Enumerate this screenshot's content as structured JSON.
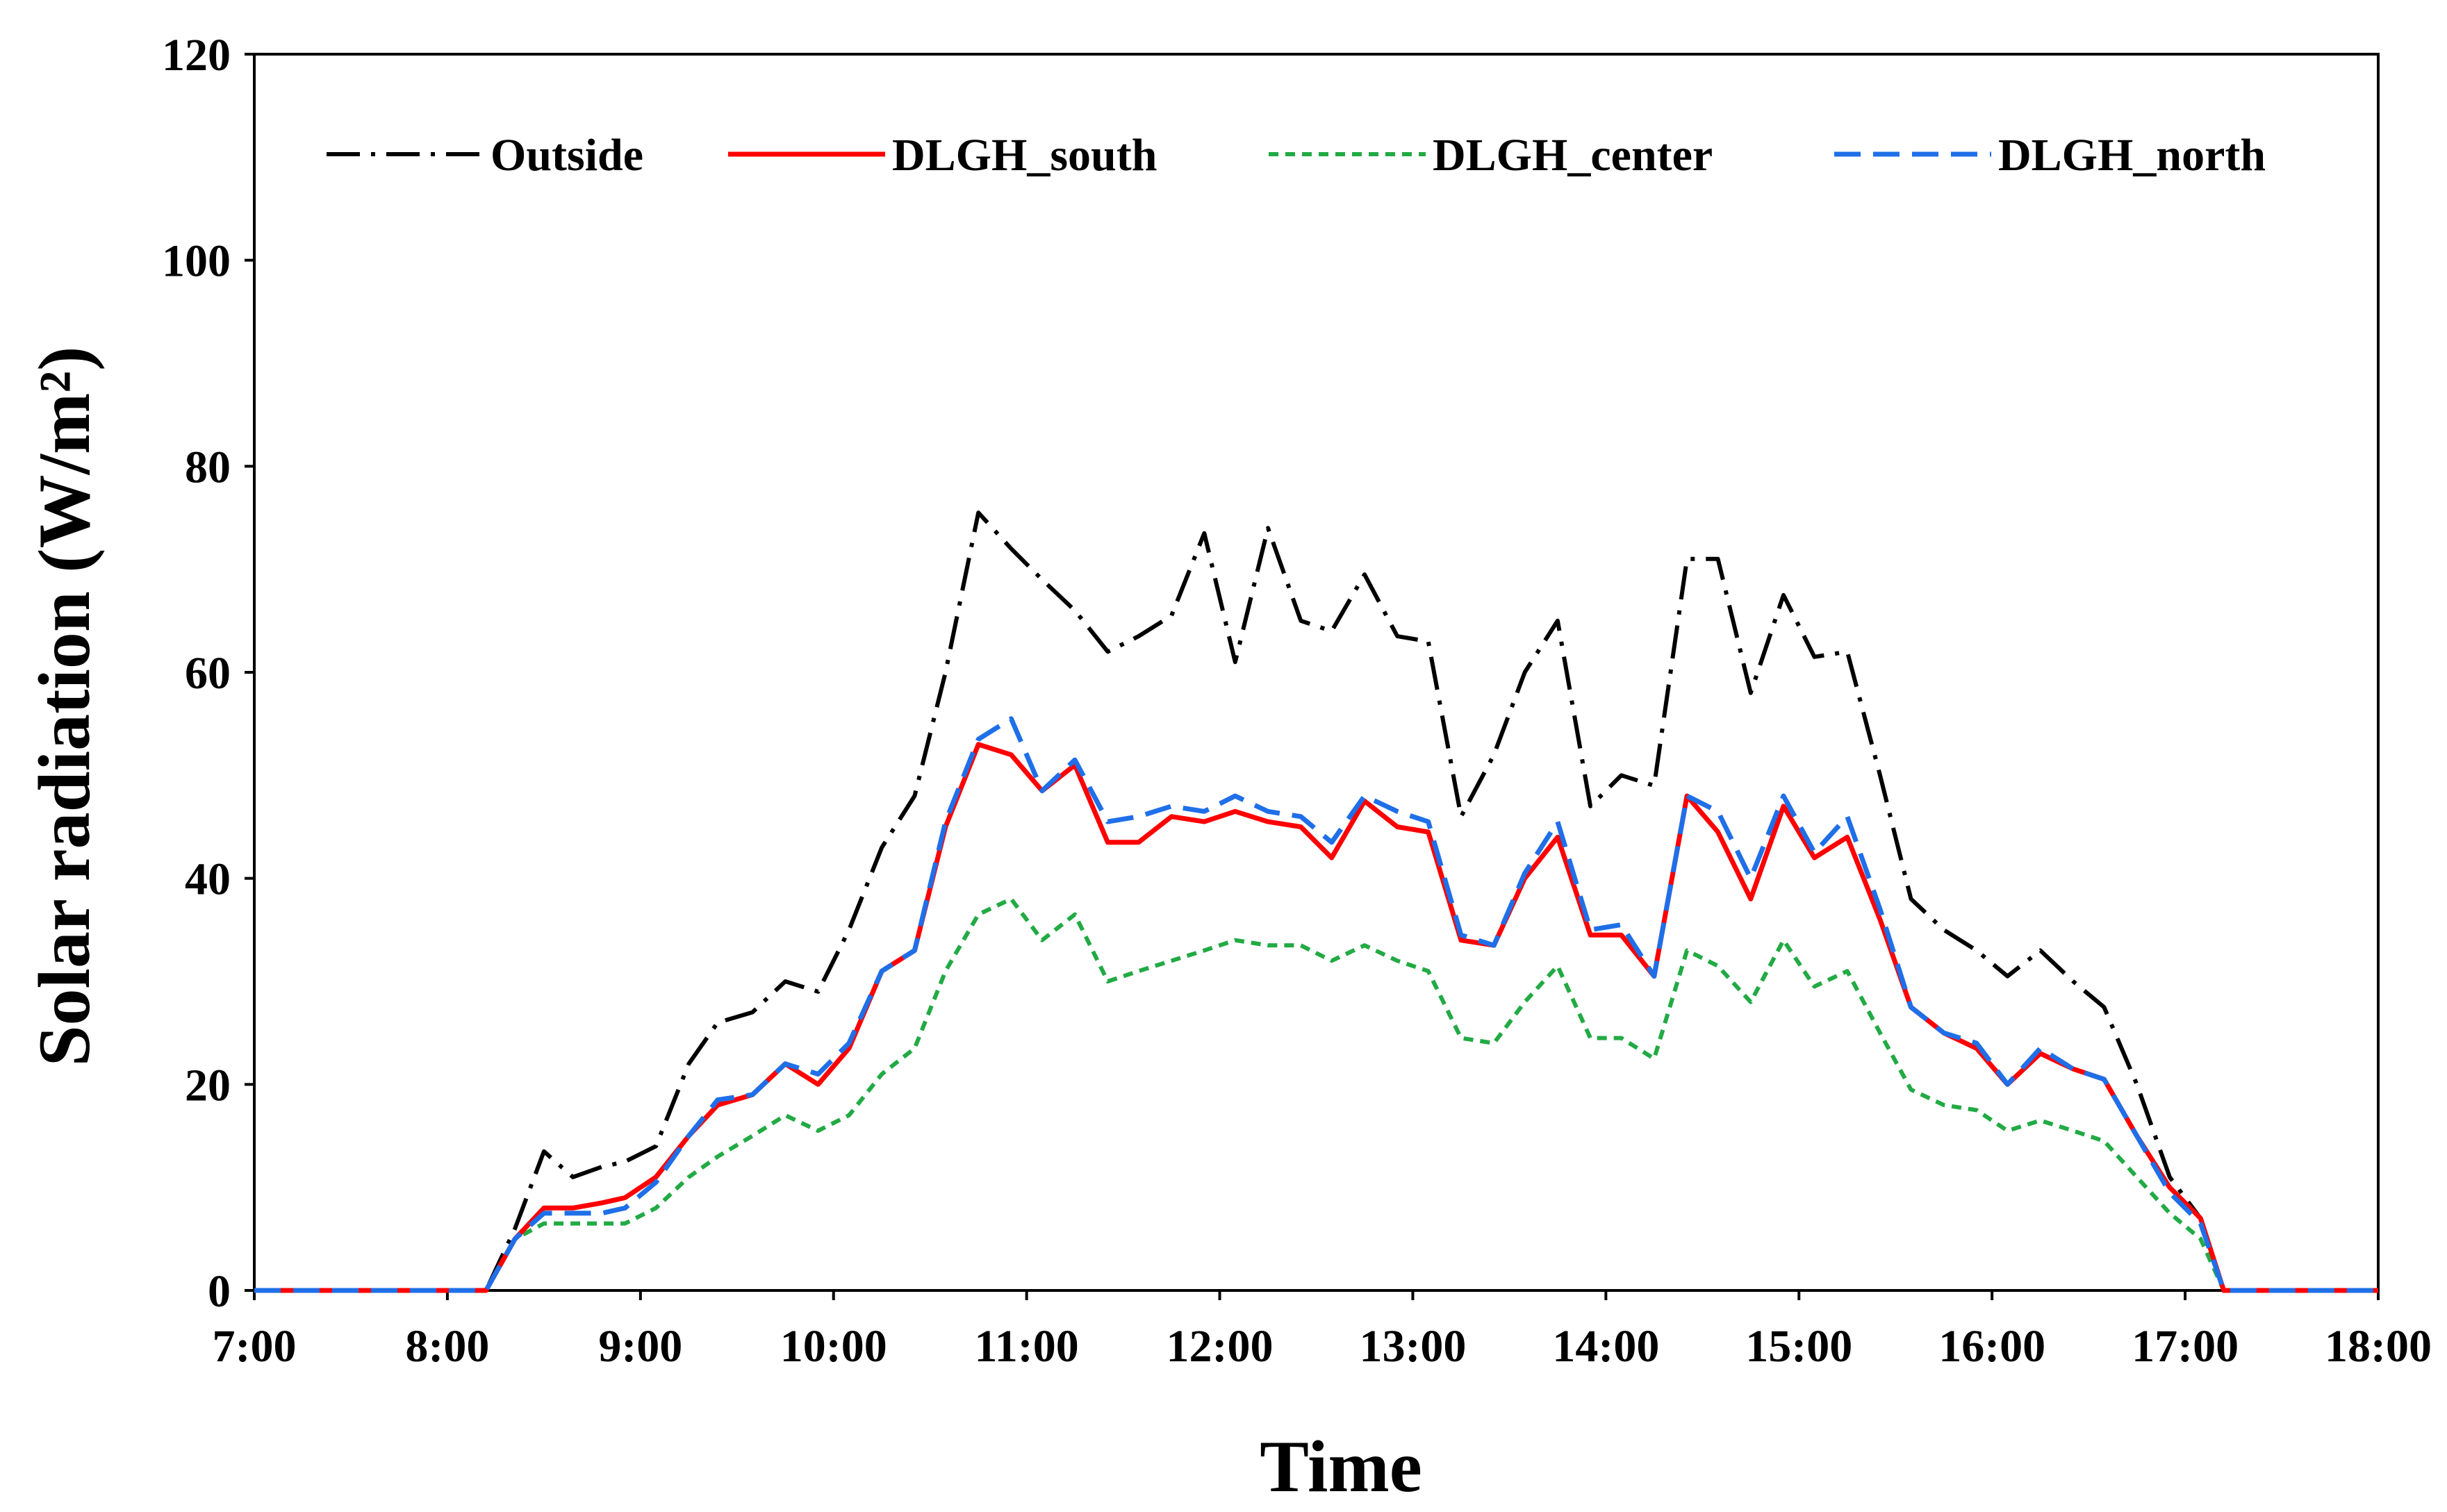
{
  "chart_data": {
    "type": "line",
    "title": "",
    "xlabel": "Time",
    "ylabel": "Solar radiation (W/m²)",
    "xlim": [
      7,
      18
    ],
    "ylim": [
      0,
      120
    ],
    "x_ticks": [
      {
        "value": 7,
        "label": "7:00"
      },
      {
        "value": 8,
        "label": "8:00"
      },
      {
        "value": 9,
        "label": "9:00"
      },
      {
        "value": 10,
        "label": "10:00"
      },
      {
        "value": 11,
        "label": "11:00"
      },
      {
        "value": 12,
        "label": "12:00"
      },
      {
        "value": 13,
        "label": "13:00"
      },
      {
        "value": 14,
        "label": "14:00"
      },
      {
        "value": 15,
        "label": "15:00"
      },
      {
        "value": 16,
        "label": "16:00"
      },
      {
        "value": 17,
        "label": "17:00"
      },
      {
        "value": 18,
        "label": "18:00"
      }
    ],
    "y_ticks": [
      {
        "value": 0,
        "label": "0"
      },
      {
        "value": 20,
        "label": "20"
      },
      {
        "value": 40,
        "label": "40"
      },
      {
        "value": 60,
        "label": "60"
      },
      {
        "value": 80,
        "label": "80"
      },
      {
        "value": 100,
        "label": "100"
      },
      {
        "value": 120,
        "label": "120"
      }
    ],
    "grid": false,
    "legend_position": "top",
    "x": [
      7.0,
      8.0,
      8.2,
      8.35,
      8.5,
      8.65,
      8.8,
      8.92,
      9.08,
      9.25,
      9.4,
      9.58,
      9.75,
      9.92,
      10.08,
      10.25,
      10.42,
      10.58,
      10.75,
      10.92,
      11.08,
      11.25,
      11.42,
      11.58,
      11.75,
      11.92,
      12.08,
      12.25,
      12.42,
      12.58,
      12.75,
      12.92,
      13.08,
      13.25,
      13.42,
      13.58,
      13.75,
      13.92,
      14.08,
      14.25,
      14.42,
      14.58,
      14.75,
      14.92,
      15.08,
      15.25,
      15.42,
      15.58,
      15.75,
      15.92,
      16.08,
      16.25,
      16.42,
      16.58,
      16.75,
      16.92,
      17.08,
      17.2,
      18.0
    ],
    "series": [
      {
        "name": "Outside",
        "color": "#000000",
        "dash": "dashdot",
        "values": [
          0,
          0,
          0,
          6,
          13.5,
          11,
          12,
          12.5,
          14,
          22,
          26,
          27,
          30,
          29,
          35,
          43,
          48,
          60,
          75.5,
          72,
          69,
          66,
          62,
          63.5,
          65.5,
          73.5,
          61,
          74,
          65,
          64,
          69.5,
          63.5,
          63,
          46,
          52,
          60,
          65,
          47,
          50,
          49,
          71,
          71,
          58,
          67.5,
          61.5,
          62,
          50,
          38,
          35,
          33,
          30.5,
          33,
          30,
          27.5,
          20,
          11,
          7,
          0,
          0
        ]
      },
      {
        "name": "DLGH_south",
        "color": "#ff0000",
        "dash": "solid",
        "values": [
          0,
          0,
          0,
          5,
          8,
          8,
          8.5,
          9,
          11,
          15,
          18,
          19,
          22,
          20,
          23.5,
          31,
          33,
          45,
          53,
          52,
          48.5,
          51,
          43.5,
          43.5,
          46,
          45.5,
          46.5,
          45.5,
          45,
          42,
          47.5,
          45,
          44.5,
          34,
          33.5,
          40,
          44,
          34.5,
          34.5,
          30.5,
          48,
          44.5,
          38,
          47,
          42,
          44,
          36,
          27.5,
          25,
          23.5,
          20,
          23,
          21.5,
          20.5,
          15,
          10,
          7,
          0,
          0
        ]
      },
      {
        "name": "DLGH_center",
        "color": "#22aa44",
        "dash": "dotted",
        "values": [
          0,
          0,
          0,
          5,
          6.5,
          6.5,
          6.5,
          6.5,
          8,
          11,
          13,
          15,
          17,
          15.5,
          17,
          21,
          23.5,
          31,
          36.5,
          38,
          34,
          36.5,
          30,
          31,
          32,
          33,
          34,
          33.5,
          33.5,
          32,
          33.5,
          32,
          31,
          24.5,
          24,
          28,
          31.5,
          24.5,
          24.5,
          22.5,
          33,
          31.5,
          28,
          34,
          29.5,
          31,
          25,
          19.5,
          18,
          17.5,
          15.5,
          16.5,
          15.5,
          14.5,
          11,
          7.5,
          5,
          0,
          0
        ]
      },
      {
        "name": "DLGH_north",
        "color": "#1f6fe8",
        "dash": "dashed",
        "values": [
          0,
          0,
          0,
          5,
          7.5,
          7.5,
          7.5,
          8,
          10.5,
          15,
          18.5,
          19,
          22,
          21,
          24,
          31,
          33,
          45.5,
          53.5,
          55.5,
          48.5,
          51.5,
          45.5,
          46,
          47,
          46.5,
          48,
          46.5,
          46,
          43.5,
          48,
          46.5,
          45.5,
          34.5,
          33.5,
          40.5,
          45.5,
          35,
          35.5,
          30.5,
          48,
          46.5,
          40,
          48,
          42.5,
          46,
          37,
          27.5,
          25,
          24,
          20,
          23.5,
          21.5,
          20.5,
          15,
          9.5,
          6.5,
          0,
          0
        ]
      }
    ]
  }
}
